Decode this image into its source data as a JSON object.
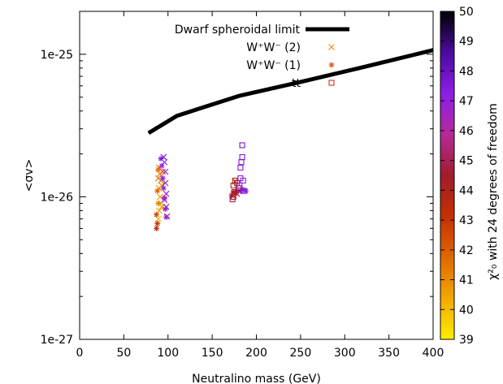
{
  "chart_data": {
    "type": "scatter",
    "xlabel": "Neutralino mass (GeV)",
    "ylabel": "<σv>",
    "xlim": [
      0,
      400
    ],
    "ylim": [
      1e-27,
      2e-25
    ],
    "yscale": "log",
    "x_ticks": [
      0,
      50,
      100,
      150,
      200,
      250,
      300,
      350,
      400
    ],
    "y_ticks": [
      {
        "value": 1e-27,
        "label": "1e-27"
      },
      {
        "value": 1e-26,
        "label": "1e-26"
      },
      {
        "value": 1e-25,
        "label": "1e-25"
      }
    ],
    "colorbar": {
      "label": "χ²₀ with 24 degrees of freedom",
      "min": 39,
      "max": 50,
      "ticks": [
        39,
        40,
        41,
        42,
        43,
        44,
        45,
        46,
        47,
        48,
        49,
        50
      ],
      "stops": [
        "#ffee00",
        "#f2a800",
        "#e06800",
        "#c53000",
        "#a01c2c",
        "#b52a9a",
        "#8c1ee8",
        "#4a0a9e",
        "#000000"
      ]
    },
    "legend_position": "top-center",
    "series": [
      {
        "name": "Dwarf spheroidal limit",
        "kind": "line",
        "color": "#000000",
        "x": [
          78,
          110,
          180,
          250,
          320,
          400
        ],
        "y": [
          2.8e-26,
          3.7e-26,
          5.1e-26,
          6.4e-26,
          8.1e-26,
          1.07e-25
        ]
      },
      {
        "name": "W⁺W⁻ (2)",
        "kind": "scatter",
        "marker": "x",
        "points": [
          {
            "x": 90,
            "y": 1.6e-26,
            "chi2": 41.5
          },
          {
            "x": 91,
            "y": 1.45e-26,
            "chi2": 41.2
          },
          {
            "x": 92,
            "y": 1.3e-26,
            "chi2": 41.0
          },
          {
            "x": 90,
            "y": 1.15e-26,
            "chi2": 40.8
          },
          {
            "x": 91,
            "y": 1e-26,
            "chi2": 40.6
          },
          {
            "x": 92,
            "y": 9e-27,
            "chi2": 40.4
          },
          {
            "x": 90,
            "y": 8e-27,
            "chi2": 40.3
          },
          {
            "x": 89,
            "y": 7e-27,
            "chi2": 40.2
          },
          {
            "x": 93,
            "y": 1.2e-26,
            "chi2": 41.0
          },
          {
            "x": 89,
            "y": 1.35e-26,
            "chi2": 41.3
          },
          {
            "x": 94,
            "y": 1.5e-26,
            "chi2": 42.0
          },
          {
            "x": 93,
            "y": 8.5e-27,
            "chi2": 40.5
          },
          {
            "x": 95,
            "y": 1.9e-26,
            "chi2": 47.5
          },
          {
            "x": 96,
            "y": 1.75e-26,
            "chi2": 47.2
          },
          {
            "x": 97,
            "y": 1.5e-26,
            "chi2": 47.0
          },
          {
            "x": 97,
            "y": 1.25e-26,
            "chi2": 46.8
          },
          {
            "x": 98,
            "y": 1.05e-26,
            "chi2": 46.8
          },
          {
            "x": 98,
            "y": 8.5e-27,
            "chi2": 46.6
          },
          {
            "x": 99,
            "y": 7.3e-27,
            "chi2": 46.5
          },
          {
            "x": 96,
            "y": 9.5e-27,
            "chi2": 46.9
          },
          {
            "x": 176,
            "y": 1.28e-26,
            "chi2": 43.8
          },
          {
            "x": 178,
            "y": 1.05e-26,
            "chi2": 44.2
          },
          {
            "x": 180,
            "y": 1.1e-26,
            "chi2": 44.5
          }
        ]
      },
      {
        "name": "W⁺W⁻ (1)",
        "kind": "scatter",
        "marker": "*",
        "points": [
          {
            "x": 87,
            "y": 6e-27,
            "chi2": 43.5
          },
          {
            "x": 88,
            "y": 6.5e-27,
            "chi2": 43.0
          },
          {
            "x": 87,
            "y": 7.5e-27,
            "chi2": 42.5
          },
          {
            "x": 88,
            "y": 1.1e-26,
            "chi2": 41.8
          },
          {
            "x": 89,
            "y": 1.55e-26,
            "chi2": 41.6
          },
          {
            "x": 89,
            "y": 9e-27,
            "chi2": 41.0
          },
          {
            "x": 92,
            "y": 1.85e-26,
            "chi2": 47.5
          },
          {
            "x": 93,
            "y": 1.65e-26,
            "chi2": 47.2
          },
          {
            "x": 94,
            "y": 1.35e-26,
            "chi2": 47.0
          },
          {
            "x": 95,
            "y": 1.15e-26,
            "chi2": 46.8
          },
          {
            "x": 96,
            "y": 9.8e-27,
            "chi2": 46.7
          },
          {
            "x": 97,
            "y": 8.2e-27,
            "chi2": 46.6
          },
          {
            "x": 98,
            "y": 7.2e-27,
            "chi2": 46.5
          },
          {
            "x": 172,
            "y": 1.02e-26,
            "chi2": 44.6
          },
          {
            "x": 174,
            "y": 1.08e-26,
            "chi2": 44.3
          },
          {
            "x": 176,
            "y": 1.06e-26,
            "chi2": 44.0
          },
          {
            "x": 178,
            "y": 1.09e-26,
            "chi2": 44.8
          },
          {
            "x": 182,
            "y": 1.1e-26,
            "chi2": 47.2
          },
          {
            "x": 185,
            "y": 1.12e-26,
            "chi2": 47.5
          },
          {
            "x": 188,
            "y": 1.1e-26,
            "chi2": 47.3
          }
        ]
      },
      {
        "name": "tt",
        "kind": "scatter",
        "marker": "square",
        "points": [
          {
            "x": 173,
            "y": 9.6e-27,
            "chi2": 44.8
          },
          {
            "x": 174,
            "y": 1e-26,
            "chi2": 44.5
          },
          {
            "x": 175,
            "y": 1.08e-26,
            "chi2": 44.2
          },
          {
            "x": 174,
            "y": 1.2e-26,
            "chi2": 43.9
          },
          {
            "x": 176,
            "y": 1.3e-26,
            "chi2": 43.7
          },
          {
            "x": 178,
            "y": 1.25e-26,
            "chi2": 44.0
          },
          {
            "x": 180,
            "y": 1.15e-26,
            "chi2": 44.6
          },
          {
            "x": 181,
            "y": 1.2e-26,
            "chi2": 47.2
          },
          {
            "x": 182,
            "y": 1.35e-26,
            "chi2": 47.0
          },
          {
            "x": 182,
            "y": 1.6e-26,
            "chi2": 47.3
          },
          {
            "x": 183,
            "y": 1.75e-26,
            "chi2": 47.5
          },
          {
            "x": 184,
            "y": 1.9e-26,
            "chi2": 47.6
          },
          {
            "x": 184,
            "y": 2.3e-26,
            "chi2": 47.8
          },
          {
            "x": 185,
            "y": 1.3e-26,
            "chi2": 47.1
          },
          {
            "x": 186,
            "y": 1.1e-26,
            "chi2": 47.4
          }
        ]
      }
    ],
    "legend_sample_colors": {
      "W⁺W⁻ (2)": "#f28c1c",
      "W⁺W⁻ (1)": "#e0561c",
      "tt": "#c8341c"
    }
  }
}
